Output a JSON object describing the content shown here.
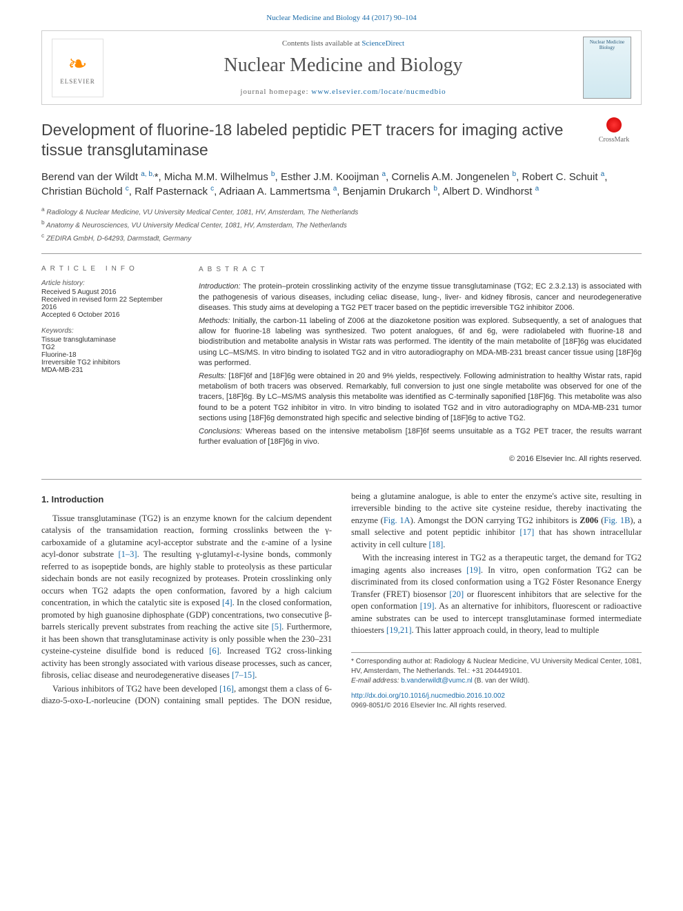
{
  "top_link": "Nuclear Medicine and Biology 44 (2017) 90–104",
  "header": {
    "contents_line_pre": "Contents lists available at ",
    "contents_line_link": "ScienceDirect",
    "journal_name": "Nuclear Medicine and Biology",
    "homepage_pre": "journal homepage: ",
    "homepage_url": "www.elsevier.com/locate/nucmedbio",
    "elsevier_label": "ELSEVIER",
    "cover_text": "Nuclear Medicine Biology"
  },
  "crossmark": "CrossMark",
  "title": "Development of fluorine-18 labeled peptidic PET tracers for imaging active tissue transglutaminase",
  "authors_html": "Berend van der Wildt <sup>a, b,</sup>*, Micha M.M. Wilhelmus <sup>b</sup>, Esther J.M. Kooijman <sup>a</sup>, Cornelis A.M. Jongenelen <sup>b</sup>, Robert C. Schuit <sup>a</sup>, Christian Büchold <sup>c</sup>, Ralf Pasternack <sup>c</sup>, Adriaan A. Lammertsma <sup>a</sup>, Benjamin Drukarch <sup>b</sup>, Albert D. Windhorst <sup>a</sup>",
  "affiliations": [
    {
      "sup": "a",
      "text": " Radiology & Nuclear Medicine, VU University Medical Center, 1081, HV, Amsterdam, The Netherlands"
    },
    {
      "sup": "b",
      "text": " Anatomy & Neurosciences, VU University Medical Center, 1081, HV, Amsterdam, The Netherlands"
    },
    {
      "sup": "c",
      "text": " ZEDIRA GmbH, D-64293, Darmstadt, Germany"
    }
  ],
  "article_info": {
    "heading": "ARTICLE INFO",
    "history_label": "Article history:",
    "history": [
      "Received 5 August 2016",
      "Received in revised form 22 September 2016",
      "Accepted 6 October 2016"
    ],
    "keywords_label": "Keywords:",
    "keywords": [
      "Tissue transglutaminase",
      "TG2",
      "Fluorine-18",
      "Irreversible TG2 inhibitors",
      "MDA-MB-231"
    ]
  },
  "abstract": {
    "heading": "ABSTRACT",
    "intro_label": "Introduction: ",
    "intro": "The protein–protein crosslinking activity of the enzyme tissue transglutaminase (TG2; EC 2.3.2.13) is associated with the pathogenesis of various diseases, including celiac disease, lung-, liver- and kidney fibrosis, cancer and neurodegenerative diseases. This study aims at developing a TG2 PET tracer based on the peptidic irreversible TG2 inhibitor Z006.",
    "methods_label": "Methods: ",
    "methods": "Initially, the carbon-11 labeling of Z006 at the diazoketone position was explored. Subsequently, a set of analogues that allow for fluorine-18 labeling was synthesized. Two potent analogues, 6f and 6g, were radiolabeled with fluorine-18 and biodistribution and metabolite analysis in Wistar rats was performed. The identity of the main metabolite of [18F]6g was elucidated using LC–MS/MS. In vitro binding to isolated TG2 and in vitro autoradiography on MDA-MB-231 breast cancer tissue using [18F]6g was performed.",
    "results_label": "Results: ",
    "results": "[18F]6f and [18F]6g were obtained in 20 and 9% yields, respectively. Following administration to healthy Wistar rats, rapid metabolism of both tracers was observed. Remarkably, full conversion to just one single metabolite was observed for one of the tracers, [18F]6g. By LC–MS/MS analysis this metabolite was identified as C-terminally saponified [18F]6g. This metabolite was also found to be a potent TG2 inhibitor in vitro. In vitro binding to isolated TG2 and in vitro autoradiography on MDA-MB-231 tumor sections using [18F]6g demonstrated high specific and selective binding of [18F]6g to active TG2.",
    "conclusions_label": "Conclusions: ",
    "conclusions": "Whereas based on the intensive metabolism [18F]6f seems unsuitable as a TG2 PET tracer, the results warrant further evaluation of [18F]6g in vivo.",
    "copyright": "© 2016 Elsevier Inc. All rights reserved."
  },
  "body": {
    "section_num": "1. Introduction",
    "p1": "Tissue transglutaminase (TG2) is an enzyme known for the calcium dependent catalysis of the transamidation reaction, forming crosslinks between the γ-carboxamide of a glutamine acyl-acceptor substrate and the ε-amine of a lysine acyl-donor substrate [1–3]. The resulting γ-glutamyl-ε-lysine bonds, commonly referred to as isopeptide bonds, are highly stable to proteolysis as these particular sidechain bonds are not easily recognized by proteases. Protein crosslinking only occurs when TG2 adapts the open conformation, favored by a high calcium concentration, in which the catalytic site is exposed [4]. In the closed conformation, promoted by high guanosine diphosphate (GDP) concentrations, two consecutive β-barrels sterically prevent substrates from reaching the active site [5]. Furthermore, it has been shown that transglutaminase activity is only possible when the 230–231 cysteine-cysteine disulfide bond is reduced [6]. Increased TG2 cross-linking activity has been strongly associated with various disease processes, such as cancer, fibrosis, celiac disease and neurodegenerative diseases [7–15].",
    "p2": "Various inhibitors of TG2 have been developed [16], amongst them a class of 6-diazo-5-oxo-L-norleucine (DON) containing small peptides. The DON residue, being a glutamine analogue, is able to enter the enzyme's active site, resulting in irreversible binding to the active site cysteine residue, thereby inactivating the enzyme (Fig. 1A). Amongst the DON carrying TG2 inhibitors is Z006 (Fig. 1B), a small selective and potent peptidic inhibitor [17] that has shown intracellular activity in cell culture [18].",
    "p3": "With the increasing interest in TG2 as a therapeutic target, the demand for TG2 imaging agents also increases [19]. In vitro, open conformation TG2 can be discriminated from its closed conformation using a TG2 Föster Resonance Energy Transfer (FRET) biosensor [20] or fluorescent inhibitors that are selective for the open conformation [19]. As an alternative for inhibitors, fluorescent or radioactive amine substrates can be used to intercept transglutaminase formed intermediate thioesters [19,21]. This latter approach could, in theory, lead to multiple"
  },
  "footnote": {
    "corr": "* Corresponding author at: Radiology & Nuclear Medicine, VU University Medical Center, 1081, HV, Amsterdam, The Netherlands. Tel.: +31 204449101.",
    "email_label": "E-mail address: ",
    "email": "b.vanderwildt@vumc.nl",
    "email_tail": " (B. van der Wildt).",
    "doi": "http://dx.doi.org/10.1016/j.nucmedbio.2016.10.002",
    "issn": "0969-8051/© 2016 Elsevier Inc. All rights reserved."
  },
  "colors": {
    "link": "#1a6ba8",
    "text": "#333333",
    "muted": "#666666",
    "border": "#cccccc"
  }
}
